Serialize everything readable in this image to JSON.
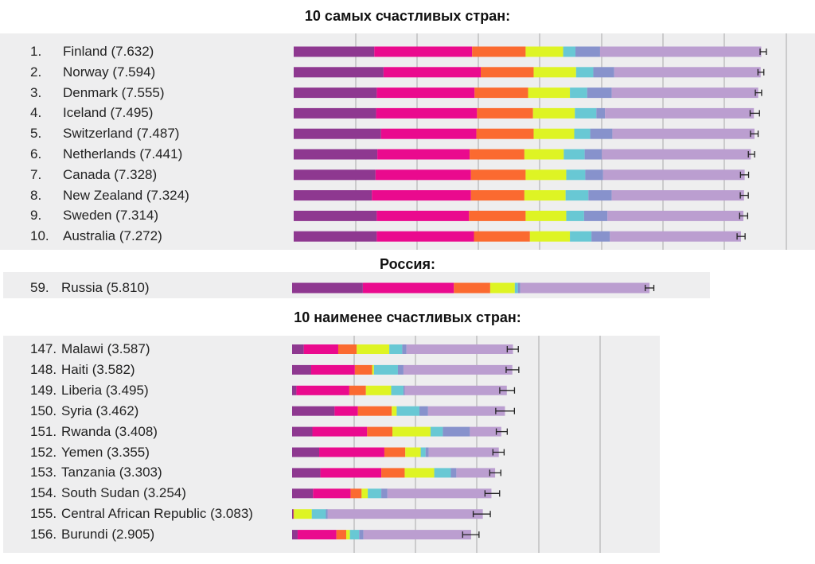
{
  "titles": {
    "top": "10 самых счастливых стран:",
    "russia": "Россия:",
    "bottom": "10 наименее счастливых стран:"
  },
  "colors": {
    "segments": [
      "#8e3890",
      "#ea0a8e",
      "#fb6a30",
      "#def424",
      "#68c8d4",
      "#8792cc",
      "#bb9ed0"
    ],
    "error_bar": "#222222",
    "gridline": "#b8b8b8",
    "panel": "#eeeeef"
  },
  "chart_data": [
    {
      "type": "bar",
      "stacked": true,
      "orientation": "horizontal",
      "title": "10 самых счастливых стран:",
      "rows": [
        {
          "rank": "1.",
          "label": "Finland (7.632)",
          "score": 7.632,
          "segments": [
            1.31,
            1.59,
            0.87,
            0.61,
            0.2,
            0.4,
            2.62
          ],
          "ci": [
            7.581,
            7.683
          ]
        },
        {
          "rank": "2.",
          "label": "Norway (7.594)",
          "score": 7.594,
          "segments": [
            1.46,
            1.58,
            0.86,
            0.69,
            0.28,
            0.34,
            2.38
          ],
          "ci": [
            7.546,
            7.642
          ]
        },
        {
          "rank": "3.",
          "label": "Denmark (7.555)",
          "score": 7.555,
          "segments": [
            1.35,
            1.59,
            0.87,
            0.68,
            0.28,
            0.4,
            2.38
          ],
          "ci": [
            7.504,
            7.606
          ]
        },
        {
          "rank": "4.",
          "label": "Iceland (7.495)",
          "score": 7.495,
          "segments": [
            1.34,
            1.64,
            0.91,
            0.68,
            0.35,
            0.14,
            2.42
          ],
          "ci": [
            7.419,
            7.571
          ]
        },
        {
          "rank": "5.",
          "label": "Switzerland (7.487)",
          "score": 7.487,
          "segments": [
            1.42,
            1.55,
            0.93,
            0.66,
            0.26,
            0.36,
            2.31
          ],
          "ci": [
            7.425,
            7.549
          ]
        },
        {
          "rank": "6.",
          "label": "Netherlands (7.441)",
          "score": 7.441,
          "segments": [
            1.36,
            1.5,
            0.89,
            0.64,
            0.34,
            0.28,
            2.42
          ],
          "ci": [
            7.39,
            7.492
          ]
        },
        {
          "rank": "7.",
          "label": "Canada (7.328)",
          "score": 7.328,
          "segments": [
            1.33,
            1.55,
            0.89,
            0.66,
            0.31,
            0.29,
            2.3
          ],
          "ci": [
            7.262,
            7.394
          ]
        },
        {
          "rank": "8.",
          "label": "New Zealand (7.324)",
          "score": 7.324,
          "segments": [
            1.27,
            1.61,
            0.87,
            0.67,
            0.37,
            0.38,
            2.15
          ],
          "ci": [
            7.259,
            7.389
          ]
        },
        {
          "rank": "9.",
          "label": "Sweden (7.314)",
          "score": 7.314,
          "segments": [
            1.35,
            1.5,
            0.92,
            0.66,
            0.29,
            0.38,
            2.21
          ],
          "ci": [
            7.249,
            7.379
          ]
        },
        {
          "rank": "10.",
          "label": "Australia (7.272)",
          "score": 7.272,
          "segments": [
            1.35,
            1.58,
            0.91,
            0.65,
            0.35,
            0.3,
            2.13
          ],
          "ci": [
            7.207,
            7.337
          ]
        }
      ]
    },
    {
      "type": "bar",
      "stacked": true,
      "orientation": "horizontal",
      "title": "Россия:",
      "rows": [
        {
          "rank": "59.",
          "label": "Russia (5.810)",
          "score": 5.81,
          "segments": [
            1.15,
            1.48,
            0.59,
            0.4,
            0.05,
            0.04,
            2.1
          ],
          "ci": [
            5.74,
            5.88
          ]
        }
      ]
    },
    {
      "type": "bar",
      "stacked": true,
      "orientation": "horizontal",
      "title": "10 наименее счастливых стран:",
      "rows": [
        {
          "rank": "147.",
          "label": "Malawi (3.587)",
          "score": 3.587,
          "segments": [
            0.19,
            0.56,
            0.3,
            0.53,
            0.21,
            0.07,
            1.73
          ],
          "ci": [
            3.497,
            3.677
          ]
        },
        {
          "rank": "148.",
          "label": "Haiti (3.582)",
          "score": 3.582,
          "segments": [
            0.31,
            0.71,
            0.28,
            0.03,
            0.39,
            0.09,
            1.77
          ],
          "ci": [
            3.479,
            3.685
          ]
        },
        {
          "rank": "149.",
          "label": "Liberia (3.495)",
          "score": 3.495,
          "segments": [
            0.07,
            0.86,
            0.27,
            0.41,
            0.2,
            0.02,
            1.66
          ],
          "ci": [
            3.375,
            3.615
          ]
        },
        {
          "rank": "150.",
          "label": "Syria (3.462)",
          "score": 3.462,
          "segments": [
            0.69,
            0.38,
            0.55,
            0.08,
            0.37,
            0.14,
            1.25
          ],
          "ci": [
            3.31,
            3.614
          ]
        },
        {
          "rank": "151.",
          "label": "Rwanda (3.408)",
          "score": 3.408,
          "segments": [
            0.33,
            0.89,
            0.41,
            0.62,
            0.2,
            0.44,
            0.51
          ],
          "ci": [
            3.319,
            3.497
          ]
        },
        {
          "rank": "152.",
          "label": "Yemen (3.355)",
          "score": 3.355,
          "segments": [
            0.44,
            1.06,
            0.34,
            0.25,
            0.08,
            0.05,
            1.14
          ],
          "ci": [
            3.264,
            3.446
          ]
        },
        {
          "rank": "153.",
          "label": "Tanzania (3.303)",
          "score": 3.303,
          "segments": [
            0.46,
            0.99,
            0.38,
            0.48,
            0.27,
            0.09,
            0.63
          ],
          "ci": [
            3.213,
            3.393
          ]
        },
        {
          "rank": "154.",
          "label": "South Sudan (3.254)",
          "score": 3.254,
          "segments": [
            0.34,
            0.61,
            0.18,
            0.1,
            0.22,
            0.1,
            1.69
          ],
          "ci": [
            3.135,
            3.373
          ]
        },
        {
          "rank": "155.",
          "label": "Central African Republic (3.083)",
          "score": 3.083,
          "segments": [
            0.02,
            0.0,
            0.01,
            0.29,
            0.23,
            0.03,
            2.52
          ],
          "ci": [
            2.944,
            3.222
          ]
        },
        {
          "rank": "156.",
          "label": "Burundi (2.905)",
          "score": 2.905,
          "segments": [
            0.09,
            0.63,
            0.16,
            0.06,
            0.15,
            0.07,
            1.75
          ],
          "ci": [
            2.772,
            3.038
          ]
        }
      ]
    }
  ]
}
